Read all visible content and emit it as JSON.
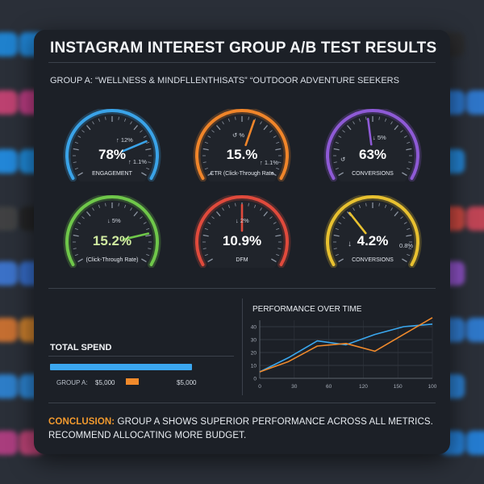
{
  "title": "INSTAGRAM INTEREST GROUP A/B TEST RESULTS",
  "group_line": "GROUP A: “WELLNESS & MINDFLLENTHISATS”  “OUTDOOR ADVENTURE SEEKERS",
  "gauges": [
    {
      "value": "78%",
      "label": "ENGAGEMENT",
      "delta_top": "↑ 12%",
      "delta_side": "↑ 1.1%",
      "color": "#3aa3e8",
      "level": 0.78
    },
    {
      "value": "15.%",
      "label": "CTR (Click-Through Rate",
      "delta_top": "↺ %",
      "delta_side": "↑ 1.1%",
      "color": "#f0852a",
      "level": 0.58
    },
    {
      "value": "63%",
      "label": "CONVERSIONS",
      "delta_top": "↓ 5%",
      "delta_side": "↺",
      "color": "#8e5ad6",
      "level": 0.47
    },
    {
      "value": "15.2%",
      "label": "(Click-Through Rate)",
      "delta_top": "↓ 5%",
      "delta_side": "",
      "color": "#6fc74a",
      "level": 0.82
    },
    {
      "value": "10.9%",
      "label": "DFM",
      "delta_top": "↓ 2%",
      "delta_side": "",
      "color": "#e04a3c",
      "level": 0.5
    },
    {
      "value": "4.2%",
      "label": "CONVERSIONS",
      "delta_top": "↓",
      "delta_side": "0.8%",
      "color": "#e8c130",
      "level": 0.34
    }
  ],
  "spend": {
    "title": "TOTAL SPEND",
    "group_a_label": "GROUP A:",
    "group_a_value": "$5,000",
    "group_b_value": "$5,000",
    "colors": {
      "a": "#3ba7f0",
      "b": "#f18a2b"
    }
  },
  "chart_data": {
    "type": "line",
    "title": "PERFORMANCE OVER TIME",
    "xlabel": "",
    "ylabel": "",
    "x_ticks": [
      "0",
      "30",
      "60",
      "120",
      "150",
      "100"
    ],
    "y_ticks": [
      "0",
      "10",
      "20",
      "30",
      "40"
    ],
    "ylim": [
      0,
      45
    ],
    "grid": true,
    "series": [
      {
        "color": "#3aa7ee",
        "values": [
          5,
          16,
          29,
          26,
          34,
          40,
          42
        ]
      },
      {
        "color": "#f08a2c",
        "values": [
          5,
          13,
          25,
          27,
          21,
          34,
          47
        ]
      }
    ]
  },
  "conclusion": {
    "lead": "CONCLUSION:",
    "text": " GROUP A SHOWS SUPERIOR PERFORMANCE ACROSS ALL METRICS. RECOMMEND ALLOCATING MORE BUDGET."
  }
}
